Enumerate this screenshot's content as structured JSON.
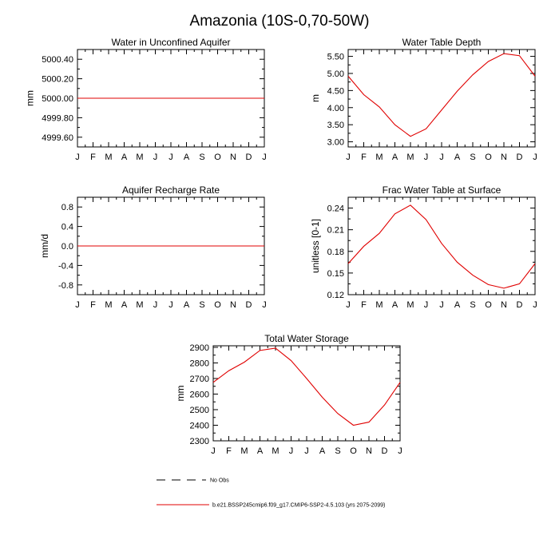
{
  "title": "Amazonia (10S-0,70-50W)",
  "legend": [
    {
      "label": "No Obs",
      "color": "#000000",
      "dash": true
    },
    {
      "label": "b.e21.BSSP245cmip6.f09_g17.CMIP6-SSP2-4.5.103 (yrs 2075-2099)",
      "color": "#e00000",
      "dash": false
    }
  ],
  "chart_data": [
    {
      "id": "water-in-unconfined-aquifer",
      "type": "line",
      "title": "Water in Unconfined Aquifer",
      "ylabel": "mm",
      "xticklabels": [
        "J",
        "F",
        "M",
        "A",
        "M",
        "J",
        "J",
        "A",
        "S",
        "O",
        "N",
        "D",
        "J"
      ],
      "ylim": [
        4999.5,
        5000.5
      ],
      "yticks": [
        4999.6,
        4999.8,
        5000.0,
        5000.2,
        5000.4
      ],
      "yticklabels": [
        "4999.60",
        "4999.80",
        "5000.00",
        "5000.20",
        "5000.40"
      ],
      "series": [
        {
          "color": "#e00000",
          "values": [
            5000,
            5000,
            5000,
            5000,
            5000,
            5000,
            5000,
            5000,
            5000,
            5000,
            5000,
            5000,
            5000
          ]
        }
      ]
    },
    {
      "id": "water-table-depth",
      "type": "line",
      "title": "Water Table Depth",
      "ylabel": "m",
      "xticklabels": [
        "J",
        "F",
        "M",
        "A",
        "M",
        "J",
        "J",
        "A",
        "S",
        "O",
        "N",
        "D",
        "J"
      ],
      "ylim": [
        2.85,
        5.7
      ],
      "yticks": [
        3.0,
        3.5,
        4.0,
        4.5,
        5.0,
        5.5
      ],
      "yticklabels": [
        "3.00",
        "3.50",
        "4.00",
        "4.50",
        "5.00",
        "5.50"
      ],
      "series": [
        {
          "color": "#e00000",
          "values": [
            4.92,
            4.38,
            4.02,
            3.5,
            3.16,
            3.38,
            3.93,
            4.48,
            4.96,
            5.35,
            5.58,
            5.52,
            4.92
          ]
        }
      ]
    },
    {
      "id": "aquifer-recharge-rate",
      "type": "line",
      "title": "Aquifer Recharge Rate",
      "ylabel": "mm/d",
      "xticklabels": [
        "J",
        "F",
        "M",
        "A",
        "M",
        "J",
        "J",
        "A",
        "S",
        "O",
        "N",
        "D",
        "J"
      ],
      "ylim": [
        -1.0,
        1.0
      ],
      "yticks": [
        -0.8,
        -0.4,
        0.0,
        0.4,
        0.8
      ],
      "yticklabels": [
        "-0.8",
        "-0.4",
        "0.0",
        "0.4",
        "0.8"
      ],
      "series": [
        {
          "color": "#e00000",
          "values": [
            0,
            0,
            0,
            0,
            0,
            0,
            0,
            0,
            0,
            0,
            0,
            0,
            0
          ]
        }
      ]
    },
    {
      "id": "frac-water-table-at-surface",
      "type": "line",
      "title": "Frac Water Table at Surface",
      "ylabel": "unitless [0-1]",
      "xticklabels": [
        "J",
        "F",
        "M",
        "A",
        "M",
        "J",
        "J",
        "A",
        "S",
        "O",
        "N",
        "D",
        "J"
      ],
      "ylim": [
        0.12,
        0.255
      ],
      "yticks": [
        0.12,
        0.15,
        0.18,
        0.21,
        0.24
      ],
      "yticklabels": [
        "0.12",
        "0.15",
        "0.18",
        "0.21",
        "0.24"
      ],
      "series": [
        {
          "color": "#e00000",
          "values": [
            0.163,
            0.187,
            0.205,
            0.232,
            0.244,
            0.224,
            0.191,
            0.165,
            0.147,
            0.134,
            0.129,
            0.135,
            0.163
          ]
        }
      ]
    },
    {
      "id": "total-water-storage",
      "type": "line",
      "title": "Total Water Storage",
      "ylabel": "mm",
      "xticklabels": [
        "J",
        "F",
        "M",
        "A",
        "M",
        "J",
        "J",
        "A",
        "S",
        "O",
        "N",
        "D",
        "J"
      ],
      "ylim": [
        2300,
        2910
      ],
      "yticks": [
        2300,
        2400,
        2500,
        2600,
        2700,
        2800,
        2900
      ],
      "yticklabels": [
        "2300",
        "2400",
        "2500",
        "2600",
        "2700",
        "2800",
        "2900"
      ],
      "series": [
        {
          "color": "#e00000",
          "values": [
            2675,
            2750,
            2805,
            2880,
            2895,
            2815,
            2700,
            2580,
            2475,
            2400,
            2420,
            2530,
            2675
          ]
        }
      ]
    }
  ]
}
